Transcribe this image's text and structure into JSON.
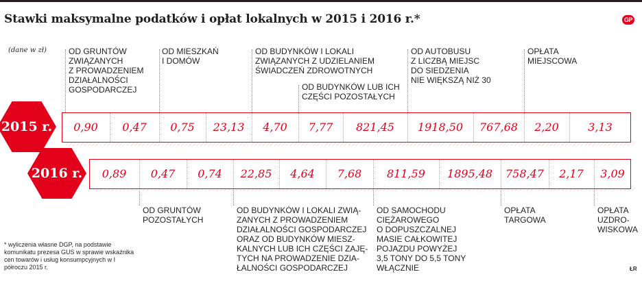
{
  "title": "Stawki maksymalne podatków i opłat lokalnych w 2015 i 2016 r.*",
  "logo": "GP",
  "units": "(dane w zł)",
  "footnote": "* wyliczenia własne DGP, na podstawie komunikatu prezesa GUS w sprawie wskaźnika cen towarów i usług konsumpcyjnych w I półroczu 2015 r.",
  "credit": "ŁR",
  "colors": {
    "accent": "#e2001a",
    "text": "#231f20"
  },
  "chart_data": {
    "type": "table",
    "title": "Stawki maksymalne podatków i opłat lokalnych w 2015 i 2016 r.*",
    "unit": "(dane w zł)",
    "rows": [
      {
        "year": "2015 r.",
        "values": [
          "0,90",
          "0,47",
          "0,75",
          "23,13",
          "4,70",
          "7,77",
          "821,45",
          "1918,50",
          "767,68",
          "2,20",
          "3,13"
        ]
      },
      {
        "year": "2016 r.",
        "values": [
          "0,89",
          "0,47",
          "0,74",
          "22,85",
          "4,64",
          "7,68",
          "811,59",
          "1895,48",
          "758,47",
          "2,17",
          "3,09"
        ]
      }
    ],
    "categories_top": [
      "OD GRUNTÓW\nZWIĄZANYCH\nZ PROWADZENIEM\nDZIAŁALNOŚCI\nGOSPODARCZEJ",
      "OD MIESZKAŃ\nI DOMÓW",
      "OD BUDYNKÓW I LOKALI\nZWIĄZANYCH Z UDZIELANIEM\nŚWIADCZEŃ ZDROWOTNYCH",
      "OD BUDYNKÓW LUB ICH\nCZĘŚCI POZOSTAŁYCH",
      "OD AUTOBUSU\nZ LICZBĄ MIEJSC\nDO SIEDZENIA\nNIE WIĘKSZĄ NIŻ 30",
      "OPŁATA\nMIEJSCOWA"
    ],
    "categories_bottom": [
      "OD GRUNTÓW\nPOZOSTAŁYCH",
      "OD BUDYNKÓW I LOKALI ZWIĄ-\nZANYCH Z PROWADZENIEM\nDZIAŁALNOŚCI GOSPODARCZEJ\nORAZ OD BUDYNKÓW MIESZ-\nKALNYCH LUB ICH CZĘŚCI ZAJĘ-\nTYCH NA PROWADZENIE DZIA-\nŁALNOŚCI GOSPODARCZEJ",
      "OD SAMOCHODU\nCIĘŻAROWEGO\nO DOPUSZCZALNEJ\nMASIE CAŁKOWITEJ\nPOJAZDU POWYŻEJ\n3,5 TONY DO 5,5 TONY\nWŁĄCZNIE",
      "OPŁATA\nTARGOWA",
      "OPŁATA\nUZDRO-\nWISKOWA"
    ]
  }
}
